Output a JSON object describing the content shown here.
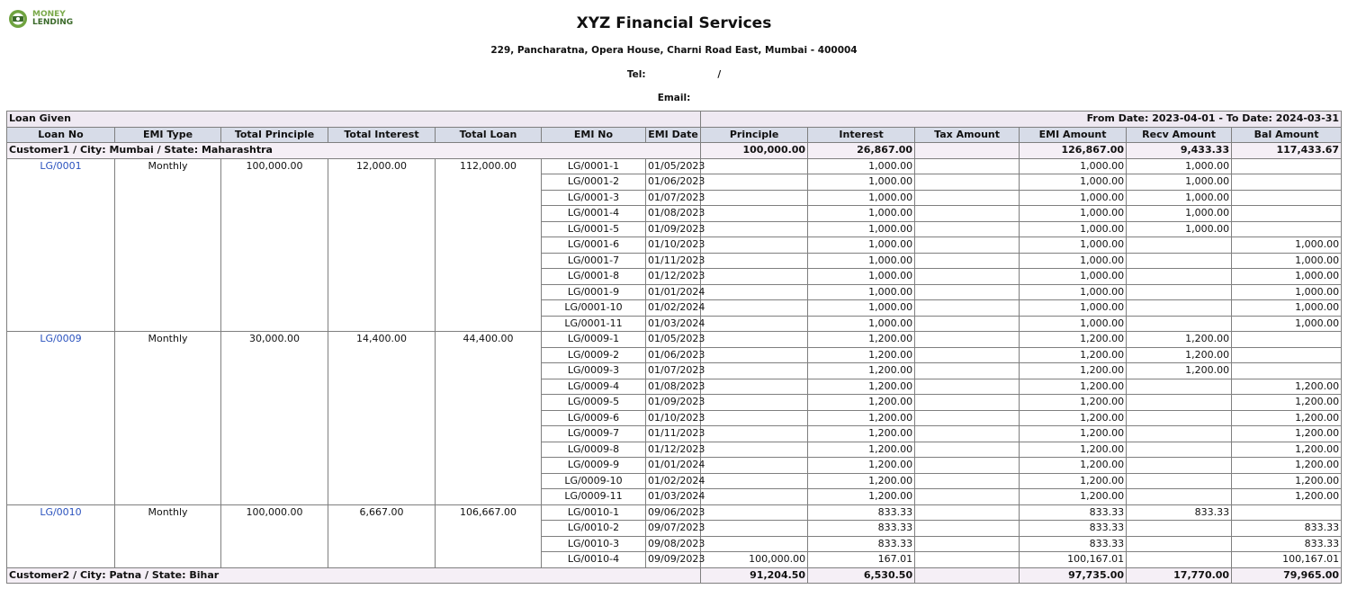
{
  "logo": {
    "line1": "MONEY",
    "line2": "LENDING"
  },
  "header": {
    "title": "XYZ Financial Services",
    "address": "229, Pancharatna, Opera House, Charni Road East, Mumbai - 400004",
    "tel_label": "Tel:",
    "tel_sep": "/",
    "email_label": "Email:"
  },
  "report": {
    "title": "Loan Given",
    "date_range": "From Date: 2023-04-01 - To Date: 2024-03-31",
    "columns": [
      "Loan No",
      "EMI Type",
      "Total Principle",
      "Total Interest",
      "Total Loan",
      "EMI No",
      "EMI Date",
      "Principle",
      "Interest",
      "Tax Amount",
      "EMI Amount",
      "Recv Amount",
      "Bal Amount"
    ]
  },
  "groups": [
    {
      "label": "Customer1 / City: Mumbai / State: Maharashtra",
      "principle": "100,000.00",
      "interest": "26,867.00",
      "tax": "",
      "emi_amount": "126,867.00",
      "recv_amount": "9,433.33",
      "bal_amount": "117,433.67",
      "loans": [
        {
          "loan_no": "LG/0001",
          "emi_type": "Monthly",
          "total_principle": "100,000.00",
          "total_interest": "12,000.00",
          "total_loan": "112,000.00",
          "emis": [
            {
              "no": "LG/0001-1",
              "date": "01/05/2023",
              "principle": "",
              "interest": "1,000.00",
              "tax": "",
              "emi": "1,000.00",
              "recv": "1,000.00",
              "bal": ""
            },
            {
              "no": "LG/0001-2",
              "date": "01/06/2023",
              "principle": "",
              "interest": "1,000.00",
              "tax": "",
              "emi": "1,000.00",
              "recv": "1,000.00",
              "bal": ""
            },
            {
              "no": "LG/0001-3",
              "date": "01/07/2023",
              "principle": "",
              "interest": "1,000.00",
              "tax": "",
              "emi": "1,000.00",
              "recv": "1,000.00",
              "bal": ""
            },
            {
              "no": "LG/0001-4",
              "date": "01/08/2023",
              "principle": "",
              "interest": "1,000.00",
              "tax": "",
              "emi": "1,000.00",
              "recv": "1,000.00",
              "bal": ""
            },
            {
              "no": "LG/0001-5",
              "date": "01/09/2023",
              "principle": "",
              "interest": "1,000.00",
              "tax": "",
              "emi": "1,000.00",
              "recv": "1,000.00",
              "bal": ""
            },
            {
              "no": "LG/0001-6",
              "date": "01/10/2023",
              "principle": "",
              "interest": "1,000.00",
              "tax": "",
              "emi": "1,000.00",
              "recv": "",
              "bal": "1,000.00"
            },
            {
              "no": "LG/0001-7",
              "date": "01/11/2023",
              "principle": "",
              "interest": "1,000.00",
              "tax": "",
              "emi": "1,000.00",
              "recv": "",
              "bal": "1,000.00"
            },
            {
              "no": "LG/0001-8",
              "date": "01/12/2023",
              "principle": "",
              "interest": "1,000.00",
              "tax": "",
              "emi": "1,000.00",
              "recv": "",
              "bal": "1,000.00"
            },
            {
              "no": "LG/0001-9",
              "date": "01/01/2024",
              "principle": "",
              "interest": "1,000.00",
              "tax": "",
              "emi": "1,000.00",
              "recv": "",
              "bal": "1,000.00"
            },
            {
              "no": "LG/0001-10",
              "date": "01/02/2024",
              "principle": "",
              "interest": "1,000.00",
              "tax": "",
              "emi": "1,000.00",
              "recv": "",
              "bal": "1,000.00"
            },
            {
              "no": "LG/0001-11",
              "date": "01/03/2024",
              "principle": "",
              "interest": "1,000.00",
              "tax": "",
              "emi": "1,000.00",
              "recv": "",
              "bal": "1,000.00"
            }
          ]
        },
        {
          "loan_no": "LG/0009",
          "emi_type": "Monthly",
          "total_principle": "30,000.00",
          "total_interest": "14,400.00",
          "total_loan": "44,400.00",
          "emis": [
            {
              "no": "LG/0009-1",
              "date": "01/05/2023",
              "principle": "",
              "interest": "1,200.00",
              "tax": "",
              "emi": "1,200.00",
              "recv": "1,200.00",
              "bal": ""
            },
            {
              "no": "LG/0009-2",
              "date": "01/06/2023",
              "principle": "",
              "interest": "1,200.00",
              "tax": "",
              "emi": "1,200.00",
              "recv": "1,200.00",
              "bal": ""
            },
            {
              "no": "LG/0009-3",
              "date": "01/07/2023",
              "principle": "",
              "interest": "1,200.00",
              "tax": "",
              "emi": "1,200.00",
              "recv": "1,200.00",
              "bal": ""
            },
            {
              "no": "LG/0009-4",
              "date": "01/08/2023",
              "principle": "",
              "interest": "1,200.00",
              "tax": "",
              "emi": "1,200.00",
              "recv": "",
              "bal": "1,200.00"
            },
            {
              "no": "LG/0009-5",
              "date": "01/09/2023",
              "principle": "",
              "interest": "1,200.00",
              "tax": "",
              "emi": "1,200.00",
              "recv": "",
              "bal": "1,200.00"
            },
            {
              "no": "LG/0009-6",
              "date": "01/10/2023",
              "principle": "",
              "interest": "1,200.00",
              "tax": "",
              "emi": "1,200.00",
              "recv": "",
              "bal": "1,200.00"
            },
            {
              "no": "LG/0009-7",
              "date": "01/11/2023",
              "principle": "",
              "interest": "1,200.00",
              "tax": "",
              "emi": "1,200.00",
              "recv": "",
              "bal": "1,200.00"
            },
            {
              "no": "LG/0009-8",
              "date": "01/12/2023",
              "principle": "",
              "interest": "1,200.00",
              "tax": "",
              "emi": "1,200.00",
              "recv": "",
              "bal": "1,200.00"
            },
            {
              "no": "LG/0009-9",
              "date": "01/01/2024",
              "principle": "",
              "interest": "1,200.00",
              "tax": "",
              "emi": "1,200.00",
              "recv": "",
              "bal": "1,200.00"
            },
            {
              "no": "LG/0009-10",
              "date": "01/02/2024",
              "principle": "",
              "interest": "1,200.00",
              "tax": "",
              "emi": "1,200.00",
              "recv": "",
              "bal": "1,200.00"
            },
            {
              "no": "LG/0009-11",
              "date": "01/03/2024",
              "principle": "",
              "interest": "1,200.00",
              "tax": "",
              "emi": "1,200.00",
              "recv": "",
              "bal": "1,200.00"
            }
          ]
        },
        {
          "loan_no": "LG/0010",
          "emi_type": "Monthly",
          "total_principle": "100,000.00",
          "total_interest": "6,667.00",
          "total_loan": "106,667.00",
          "emis": [
            {
              "no": "LG/0010-1",
              "date": "09/06/2023",
              "principle": "",
              "interest": "833.33",
              "tax": "",
              "emi": "833.33",
              "recv": "833.33",
              "bal": ""
            },
            {
              "no": "LG/0010-2",
              "date": "09/07/2023",
              "principle": "",
              "interest": "833.33",
              "tax": "",
              "emi": "833.33",
              "recv": "",
              "bal": "833.33"
            },
            {
              "no": "LG/0010-3",
              "date": "09/08/2023",
              "principle": "",
              "interest": "833.33",
              "tax": "",
              "emi": "833.33",
              "recv": "",
              "bal": "833.33"
            },
            {
              "no": "LG/0010-4",
              "date": "09/09/2023",
              "principle": "100,000.00",
              "interest": "167.01",
              "tax": "",
              "emi": "100,167.01",
              "recv": "",
              "bal": "100,167.01"
            }
          ]
        }
      ]
    },
    {
      "label": "Customer2 / City: Patna / State: Bihar",
      "principle": "91,204.50",
      "interest": "6,530.50",
      "tax": "",
      "emi_amount": "97,735.00",
      "recv_amount": "17,770.00",
      "bal_amount": "79,965.00",
      "loans": []
    }
  ]
}
